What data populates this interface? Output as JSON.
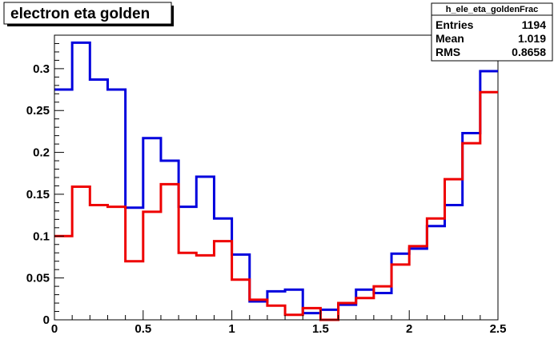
{
  "canvas": {
    "background": "#ffffff"
  },
  "title": "electron eta golden",
  "stats": {
    "name": "h_ele_eta_goldenFrac",
    "rows": [
      {
        "label": "Entries",
        "value": "1194"
      },
      {
        "label": "Mean",
        "value": "1.019"
      },
      {
        "label": "RMS",
        "value": "0.8658"
      }
    ]
  },
  "chart_data": {
    "type": "line",
    "style": "step-histogram",
    "title": "electron eta golden",
    "xlabel": "",
    "ylabel": "",
    "xlim": [
      0,
      2.5
    ],
    "ylim": [
      0,
      0.34
    ],
    "grid": false,
    "bin_edges": [
      0,
      0.1,
      0.2,
      0.3,
      0.4,
      0.5,
      0.6,
      0.7,
      0.8,
      0.9,
      1.0,
      1.1,
      1.2,
      1.3,
      1.4,
      1.5,
      1.6,
      1.7,
      1.8,
      1.9,
      2.0,
      2.1,
      2.2,
      2.3,
      2.4,
      2.5
    ],
    "x_ticks": [
      {
        "value": 0,
        "label": "0"
      },
      {
        "value": 0.5,
        "label": "0.5"
      },
      {
        "value": 1,
        "label": "1"
      },
      {
        "value": 1.5,
        "label": "1.5"
      },
      {
        "value": 2,
        "label": "2"
      },
      {
        "value": 2.5,
        "label": "2.5"
      }
    ],
    "y_ticks": [
      {
        "value": 0,
        "label": "0"
      },
      {
        "value": 0.05,
        "label": "0.05"
      },
      {
        "value": 0.1,
        "label": "0.1"
      },
      {
        "value": 0.15,
        "label": "0.15"
      },
      {
        "value": 0.2,
        "label": "0.2"
      },
      {
        "value": 0.25,
        "label": "0.25"
      },
      {
        "value": 0.3,
        "label": "0.3"
      }
    ],
    "series": [
      {
        "color": "#0000dd",
        "values": [
          0.275,
          0.331,
          0.287,
          0.275,
          0.134,
          0.217,
          0.19,
          0.135,
          0.171,
          0.121,
          0.078,
          0.022,
          0.034,
          0.036,
          0.008,
          0.012,
          0.018,
          0.036,
          0.032,
          0.079,
          0.085,
          0.112,
          0.137,
          0.223,
          0.297
        ]
      },
      {
        "color": "#ee0000",
        "values": [
          0.1,
          0.159,
          0.137,
          0.135,
          0.07,
          0.129,
          0.162,
          0.08,
          0.077,
          0.094,
          0.048,
          0.024,
          0.017,
          0.006,
          0.014,
          0.0,
          0.02,
          0.026,
          0.04,
          0.066,
          0.088,
          0.121,
          0.168,
          0.211,
          0.272
        ]
      }
    ]
  }
}
